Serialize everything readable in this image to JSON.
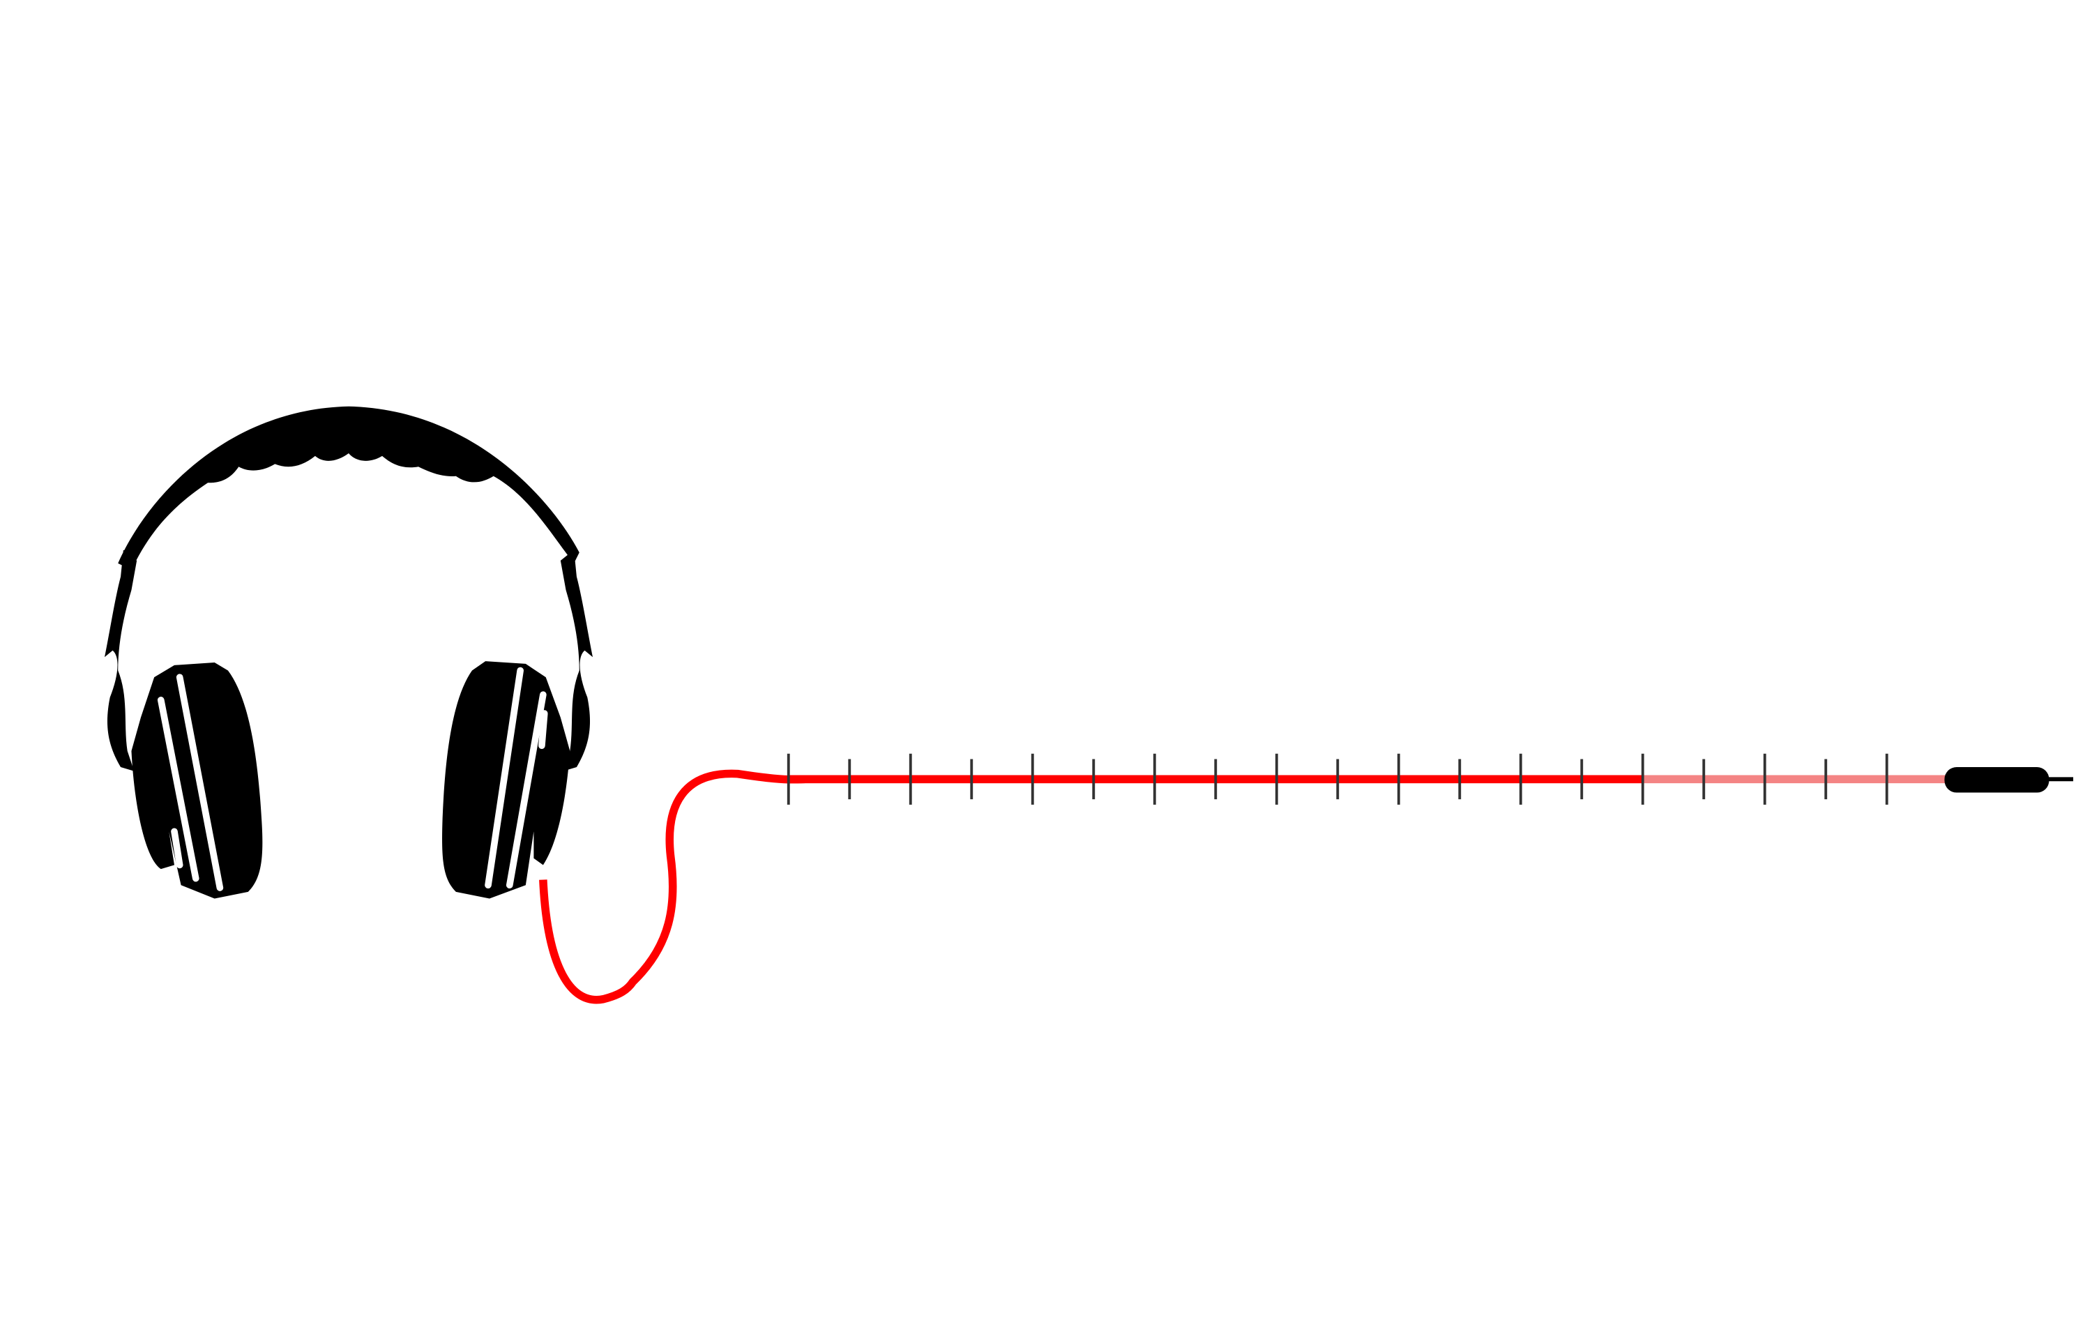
{
  "slider": {
    "min": 0,
    "max": 18,
    "value": 14,
    "ticks": [
      0,
      1,
      2,
      3,
      4,
      5,
      6,
      7,
      8,
      9,
      10,
      11,
      12,
      13,
      14,
      15,
      16,
      17,
      18
    ]
  }
}
